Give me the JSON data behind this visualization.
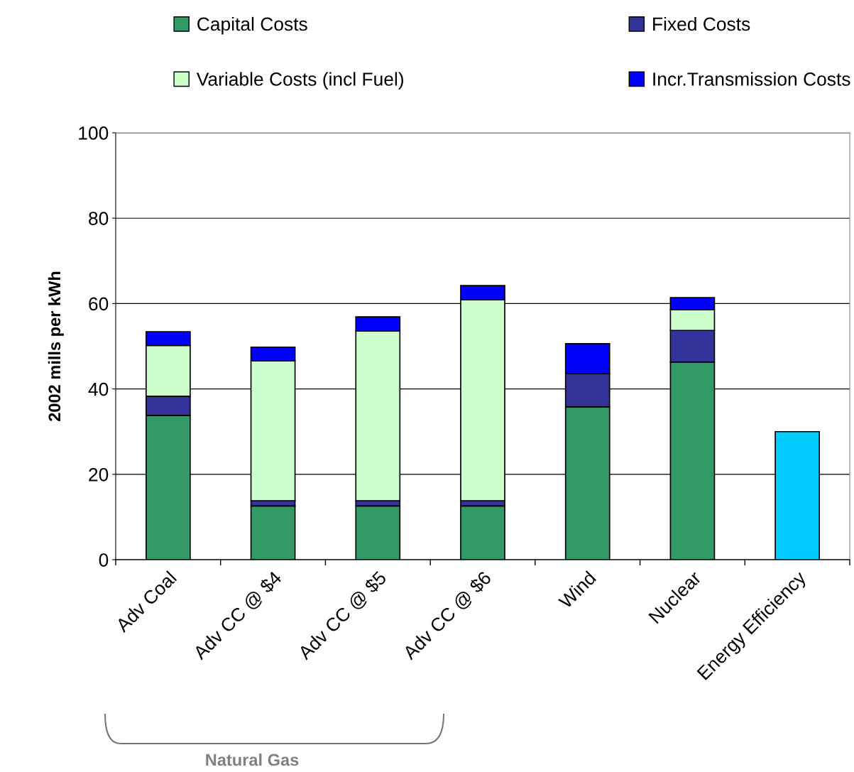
{
  "chart_data": {
    "type": "bar",
    "stacked": true,
    "ylabel": "2002 mills per kWh",
    "categories": [
      "Adv Coal",
      "Adv CC @ $4",
      "Adv CC @ $5",
      "Adv CC @ $6",
      "Wind",
      "Nuclear",
      "Energy Efficiency"
    ],
    "series": [
      {
        "name": "Capital Costs",
        "color": "#339966",
        "values": [
          33.8,
          12.6,
          12.6,
          12.6,
          35.8,
          46.3,
          null
        ]
      },
      {
        "name": "Fixed Costs",
        "color": "#333399",
        "values": [
          4.5,
          1.2,
          1.2,
          1.2,
          7.8,
          7.4,
          null
        ]
      },
      {
        "name": "Variable Costs (incl Fuel)",
        "color": "#ccffcc",
        "values": [
          11.9,
          32.8,
          39.8,
          47.1,
          null,
          4.9,
          null
        ]
      },
      {
        "name": "Incr.Transmission Costs",
        "color": "#0000ff",
        "values": [
          3.2,
          3.2,
          3.3,
          3.3,
          7.0,
          2.8,
          null
        ]
      },
      {
        "color": "#00ccff",
        "values": [
          null,
          null,
          null,
          null,
          null,
          null,
          30.0
        ]
      }
    ],
    "ylim": [
      0,
      100
    ],
    "yticks": [
      0,
      20,
      40,
      60,
      80,
      100
    ],
    "grid": "y",
    "legend": "top",
    "annotations": [
      "Natural Gas"
    ]
  }
}
